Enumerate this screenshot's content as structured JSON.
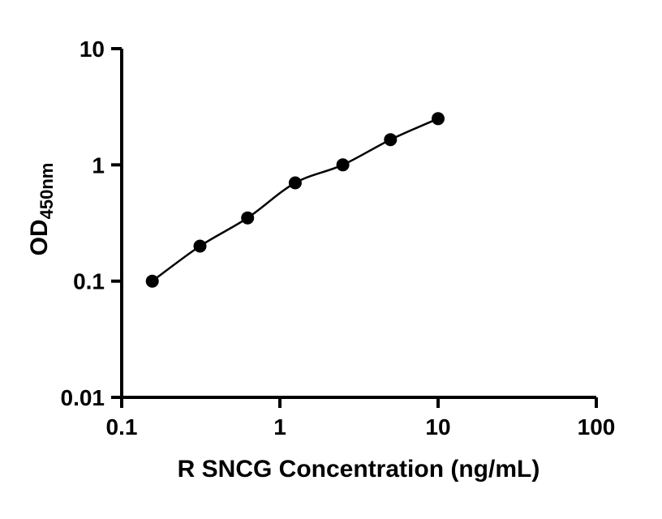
{
  "chart_data": {
    "type": "scatter",
    "xlabel": "R SNCG Concentration (ng/mL)",
    "ylabel_main": "OD",
    "ylabel_sub": "450nm",
    "x": [
      0.156,
      0.3125,
      0.625,
      1.25,
      2.5,
      5,
      10
    ],
    "y": [
      0.1,
      0.2,
      0.35,
      0.7,
      1.0,
      1.65,
      2.5
    ],
    "x_scale": "log",
    "y_scale": "log",
    "xlim": [
      0.1,
      100
    ],
    "ylim": [
      0.01,
      10
    ],
    "x_tick_values": [
      0.1,
      1,
      10,
      100
    ],
    "x_tick_labels": [
      "0.1",
      "1",
      "10",
      "100"
    ],
    "y_tick_values": [
      10,
      1,
      0.1,
      0.01
    ],
    "y_tick_labels": [
      "10",
      "1",
      "0.1",
      "0.01"
    ],
    "grid": false,
    "legend": "none",
    "curve_through_points": true,
    "marker": "circle",
    "marker_color": "#000000",
    "line_color": "#000000",
    "axis_color": "#000000",
    "background_color": "#ffffff"
  }
}
